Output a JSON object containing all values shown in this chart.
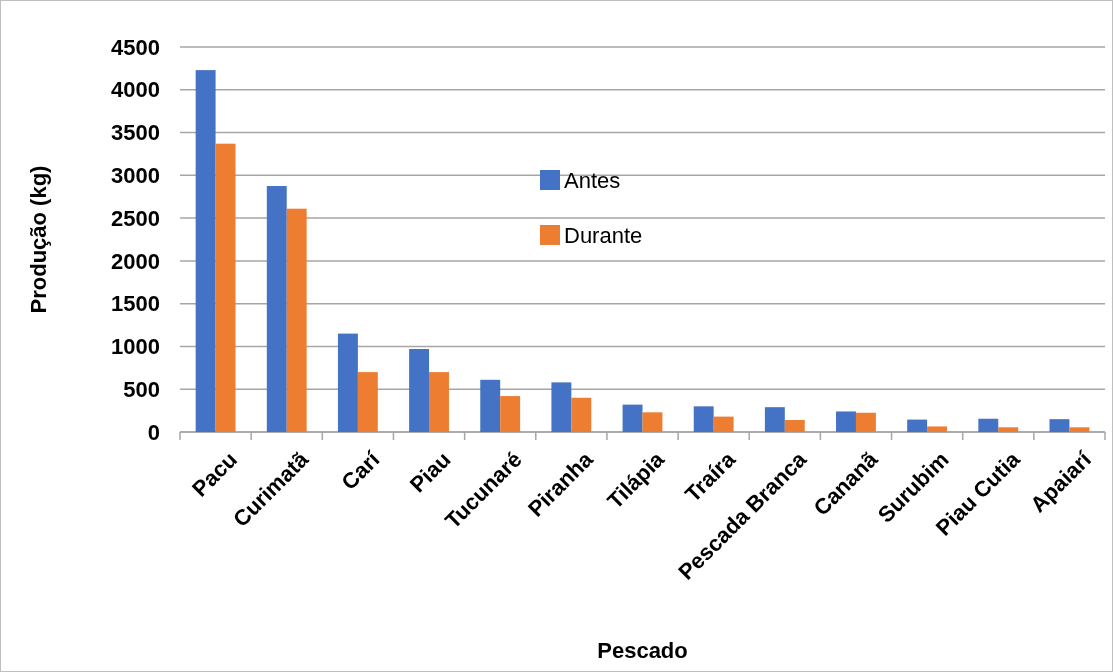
{
  "chart_data": {
    "type": "bar",
    "xlabel": "Pescado",
    "ylabel": "Produção (kg)",
    "categories": [
      "Pacu",
      "Curimatã",
      "Carí",
      "Piau",
      "Tucunaré",
      "Piranha",
      "Tilápia",
      "Traíra",
      "Pescada Branca",
      "Cananã",
      "Surubim",
      "Piau Cutia",
      "Apaiarí"
    ],
    "series": [
      {
        "name": "Antes",
        "color": "#4472c4",
        "values": [
          4230,
          2875,
          1150,
          970,
          610,
          580,
          320,
          300,
          290,
          240,
          145,
          155,
          150
        ]
      },
      {
        "name": "Durante",
        "color": "#ed7d31",
        "values": [
          3370,
          2610,
          700,
          700,
          420,
          400,
          230,
          180,
          140,
          225,
          65,
          55,
          55
        ]
      }
    ],
    "ylim": [
      0,
      4500
    ],
    "yticks": [
      0,
      500,
      1000,
      1500,
      2000,
      2500,
      3000,
      3500,
      4000,
      4500
    ],
    "grid": "y",
    "legend": "top"
  }
}
